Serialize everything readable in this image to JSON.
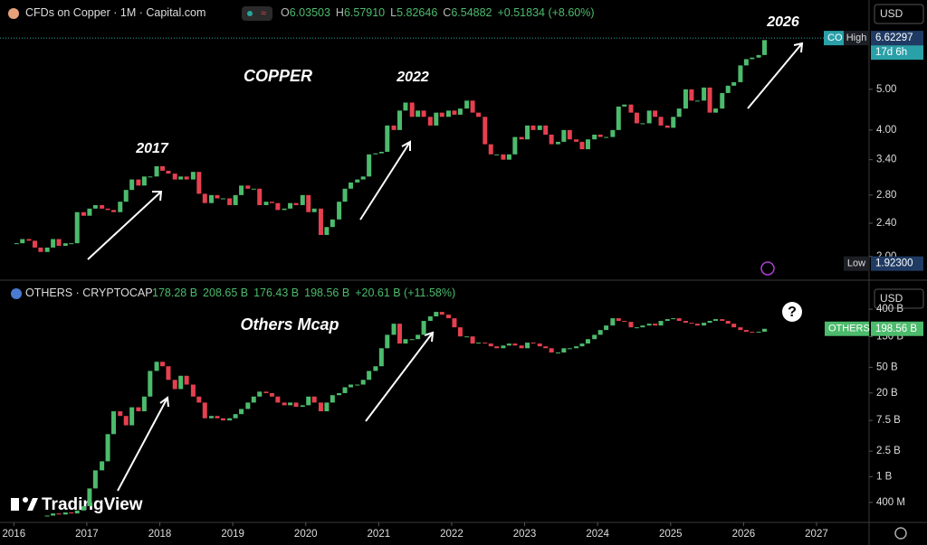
{
  "chart_data": [
    {
      "type": "candlestick",
      "title": "CFDs on Copper · 1M · Capital.com",
      "ohlc": [
        {
          "label": "O",
          "value": "6.03503"
        },
        {
          "label": "H",
          "value": "6.57910"
        },
        {
          "label": "L",
          "value": "5.82646"
        },
        {
          "label": "C",
          "value": "6.54882"
        }
      ],
      "change": "+0.51834 (+8.60%)",
      "currency": "USD",
      "symbol_tag": "CO",
      "countdown": "17d 6h",
      "log_scale": true,
      "grid": false,
      "up_color": "#4cbb6c",
      "down_color": "#e5404f",
      "xlim": [
        2015.81,
        2027.72
      ],
      "ylim": [
        1.8,
        8.16
      ],
      "yticks": [
        {
          "value": 2,
          "label": "2.00"
        },
        {
          "value": 2.4,
          "label": "2.40"
        },
        {
          "value": 2.8,
          "label": "2.80"
        },
        {
          "value": 3.4,
          "label": "3.40"
        },
        {
          "value": 4,
          "label": "4.00"
        },
        {
          "value": 5,
          "label": "5.00"
        }
      ],
      "markers": [
        {
          "name": "High",
          "value": 6.62297
        },
        {
          "name": "Low",
          "value": 1.923,
          "label": "1.92300"
        }
      ],
      "annotations": [
        "COPPER",
        "2017",
        "2022",
        "2026"
      ],
      "x": [
        2016,
        2016.08,
        2016.17,
        2016.25,
        2016.33,
        2016.42,
        2016.5,
        2016.58,
        2016.67,
        2016.75,
        2016.83,
        2016.92,
        2017,
        2017.08,
        2017.17,
        2017.25,
        2017.33,
        2017.42,
        2017.5,
        2017.58,
        2017.67,
        2017.75,
        2017.83,
        2017.92,
        2018,
        2018.08,
        2018.17,
        2018.25,
        2018.33,
        2018.42,
        2018.5,
        2018.58,
        2018.67,
        2018.75,
        2018.83,
        2018.92,
        2019,
        2019.08,
        2019.17,
        2019.25,
        2019.33,
        2019.42,
        2019.5,
        2019.58,
        2019.67,
        2019.75,
        2019.83,
        2019.92,
        2020,
        2020.08,
        2020.17,
        2020.25,
        2020.33,
        2020.42,
        2020.5,
        2020.58,
        2020.67,
        2020.75,
        2020.83,
        2020.92,
        2021,
        2021.08,
        2021.17,
        2021.25,
        2021.33,
        2021.42,
        2021.5,
        2021.58,
        2021.67,
        2021.75,
        2021.83,
        2021.92,
        2022,
        2022.08,
        2022.17,
        2022.25,
        2022.33,
        2022.42,
        2022.5,
        2022.58,
        2022.67,
        2022.75,
        2022.83,
        2022.92,
        2023,
        2023.08,
        2023.17,
        2023.25,
        2023.33,
        2023.42,
        2023.5,
        2023.58,
        2023.67,
        2023.75,
        2023.83,
        2023.92,
        2024,
        2024.08,
        2024.17,
        2024.25,
        2024.33,
        2024.42,
        2024.5,
        2024.58,
        2024.67,
        2024.75,
        2024.83,
        2024.92,
        2025,
        2025.08,
        2025.17,
        2025.25,
        2025.33,
        2025.42,
        2025.5,
        2025.58,
        2025.67,
        2025.75,
        2025.83,
        2025.92,
        2026,
        2026.08,
        2026.17,
        2026.25
      ],
      "values": [
        2.15,
        2.2,
        2.18,
        2.1,
        2.05,
        2.1,
        2.2,
        2.12,
        2.15,
        2.15,
        2.55,
        2.5,
        2.6,
        2.65,
        2.6,
        2.58,
        2.55,
        2.7,
        2.88,
        3.05,
        2.95,
        3.1,
        3.1,
        3.28,
        3.2,
        3.15,
        3.05,
        3.1,
        3.05,
        3.18,
        2.82,
        2.68,
        2.8,
        2.75,
        2.75,
        2.65,
        2.8,
        2.95,
        2.9,
        2.9,
        2.65,
        2.7,
        2.68,
        2.58,
        2.6,
        2.68,
        2.65,
        2.8,
        2.55,
        2.6,
        2.25,
        2.35,
        2.45,
        2.7,
        2.9,
        3,
        3.05,
        3.1,
        3.5,
        3.52,
        3.55,
        4.1,
        4,
        4.45,
        4.65,
        4.3,
        4.45,
        4.3,
        4.1,
        4.4,
        4.3,
        4.45,
        4.35,
        4.5,
        4.7,
        4.4,
        4.3,
        3.7,
        3.5,
        3.5,
        3.4,
        3.5,
        3.85,
        3.8,
        4.1,
        4,
        4.1,
        3.9,
        3.7,
        3.75,
        4,
        3.8,
        3.75,
        3.6,
        3.8,
        3.9,
        3.85,
        3.85,
        4,
        4.55,
        4.6,
        4.4,
        4.15,
        4.15,
        4.45,
        4.3,
        4.1,
        4.05,
        4.3,
        4.5,
        5,
        4.7,
        4.7,
        5.05,
        4.4,
        4.5,
        4.9,
        5.1,
        5.2,
        5.7,
        5.9,
        5.95,
        6.03503,
        6.54882
      ]
    },
    {
      "type": "candlestick",
      "title": "OTHERS · CRYPTOCAP",
      "ohlc": [
        {
          "value": "178.28 B"
        },
        {
          "value": "208.65 B"
        },
        {
          "value": "176.43 B"
        },
        {
          "value": "198.56 B"
        }
      ],
      "change": "+20.61 B (+11.58%)",
      "currency": "USD",
      "symbol_tag": "OTHERS",
      "last": {
        "value": 198.56,
        "label": "198.56 B"
      },
      "log_scale": true,
      "grid": false,
      "up_color": "#4cbb6c",
      "down_color": "#e5404f",
      "xlim": [
        2015.81,
        2027.72
      ],
      "ylim": [
        0.196,
        959
      ],
      "xticks": [
        2016,
        2017,
        2018,
        2019,
        2020,
        2021,
        2022,
        2023,
        2024,
        2025,
        2026,
        2027
      ],
      "yticks": [
        {
          "value": 0.4,
          "label": "400 M"
        },
        {
          "value": 1,
          "label": "1 B"
        },
        {
          "value": 2.5,
          "label": "2.5 B"
        },
        {
          "value": 7.5,
          "label": "7.5 B"
        },
        {
          "value": 20,
          "label": "20 B"
        },
        {
          "value": 50,
          "label": "50 B"
        },
        {
          "value": 150,
          "label": "150 B"
        },
        {
          "value": 400,
          "label": "400 B"
        }
      ],
      "annotations": [
        "Others Mcap",
        "?"
      ],
      "x": [
        2016,
        2016.08,
        2016.17,
        2016.25,
        2016.33,
        2016.42,
        2016.5,
        2016.58,
        2016.67,
        2016.75,
        2016.83,
        2016.92,
        2017,
        2017.08,
        2017.17,
        2017.25,
        2017.33,
        2017.42,
        2017.5,
        2017.58,
        2017.67,
        2017.75,
        2017.83,
        2017.92,
        2018,
        2018.08,
        2018.17,
        2018.25,
        2018.33,
        2018.42,
        2018.5,
        2018.58,
        2018.67,
        2018.75,
        2018.83,
        2018.92,
        2019,
        2019.08,
        2019.17,
        2019.25,
        2019.33,
        2019.42,
        2019.5,
        2019.58,
        2019.67,
        2019.75,
        2019.83,
        2019.92,
        2020,
        2020.08,
        2020.17,
        2020.25,
        2020.33,
        2020.42,
        2020.5,
        2020.58,
        2020.67,
        2020.75,
        2020.83,
        2020.92,
        2021,
        2021.08,
        2021.17,
        2021.25,
        2021.33,
        2021.42,
        2021.5,
        2021.58,
        2021.67,
        2021.75,
        2021.83,
        2021.92,
        2022,
        2022.08,
        2022.17,
        2022.25,
        2022.33,
        2022.42,
        2022.5,
        2022.58,
        2022.67,
        2022.75,
        2022.83,
        2022.92,
        2023,
        2023.08,
        2023.17,
        2023.25,
        2023.33,
        2023.42,
        2023.5,
        2023.58,
        2023.67,
        2023.75,
        2023.83,
        2023.92,
        2024,
        2024.08,
        2024.17,
        2024.25,
        2024.33,
        2024.42,
        2024.5,
        2024.58,
        2024.67,
        2024.75,
        2024.83,
        2024.92,
        2025,
        2025.08,
        2025.17,
        2025.25,
        2025.33,
        2025.42,
        2025.5,
        2025.58,
        2025.67,
        2025.75,
        2025.83,
        2025.92,
        2026,
        2026.08,
        2026.17,
        2026.25
      ],
      "values": [
        null,
        null,
        null,
        null,
        null,
        0.25,
        0.27,
        0.26,
        0.28,
        0.27,
        0.3,
        0.35,
        0.66,
        1.26,
        1.74,
        4.6,
        10.4,
        8.8,
        6.3,
        12,
        10.4,
        17.6,
        44,
        61,
        52,
        32,
        23,
        37,
        27,
        17.6,
        14.2,
        8.1,
        8.8,
        8.1,
        7.5,
        8.1,
        9.4,
        11.3,
        14.2,
        17.6,
        21,
        19.9,
        17.6,
        14.2,
        12.9,
        14.2,
        12.2,
        12.9,
        17.6,
        14.2,
        10.4,
        14.2,
        18.5,
        19.9,
        24.5,
        27,
        27,
        32,
        44,
        52,
        99,
        160,
        238,
        117,
        137,
        137,
        160,
        263,
        309,
        363,
        329,
        289,
        209,
        151,
        151,
        117,
        121,
        117,
        106,
        99,
        109,
        117,
        109,
        99,
        121,
        117,
        106,
        99,
        85,
        85,
        99,
        99,
        106,
        117,
        137,
        160,
        190,
        223,
        289,
        263,
        254,
        209,
        209,
        223,
        238,
        223,
        263,
        280,
        289,
        263,
        246,
        238,
        223,
        246,
        263,
        280,
        263,
        238,
        209,
        190,
        178,
        175,
        178.28,
        198.56
      ]
    }
  ],
  "watermark": "TradingView"
}
